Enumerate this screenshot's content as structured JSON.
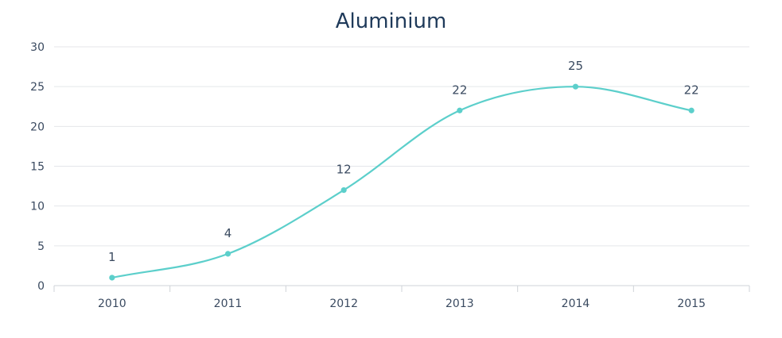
{
  "chart_data": {
    "type": "line",
    "title": "Aluminium",
    "categories": [
      "2010",
      "2011",
      "2012",
      "2013",
      "2014",
      "2015"
    ],
    "series": [
      {
        "values": [
          1,
          4,
          12,
          22,
          25,
          22
        ]
      }
    ],
    "data_labels": [
      "1",
      "4",
      "12",
      "22",
      "25",
      "22"
    ],
    "ylim": [
      0,
      30
    ],
    "y_ticks": [
      "0",
      "5",
      "10",
      "15",
      "20",
      "25",
      "30"
    ],
    "grid": true,
    "smooth": true,
    "colors": {
      "line": "#5ccfcb",
      "grid": "#e4e6ea",
      "axis": "#cfd3d8",
      "text": "#3a4a60",
      "title": "#1f3a5a"
    }
  }
}
